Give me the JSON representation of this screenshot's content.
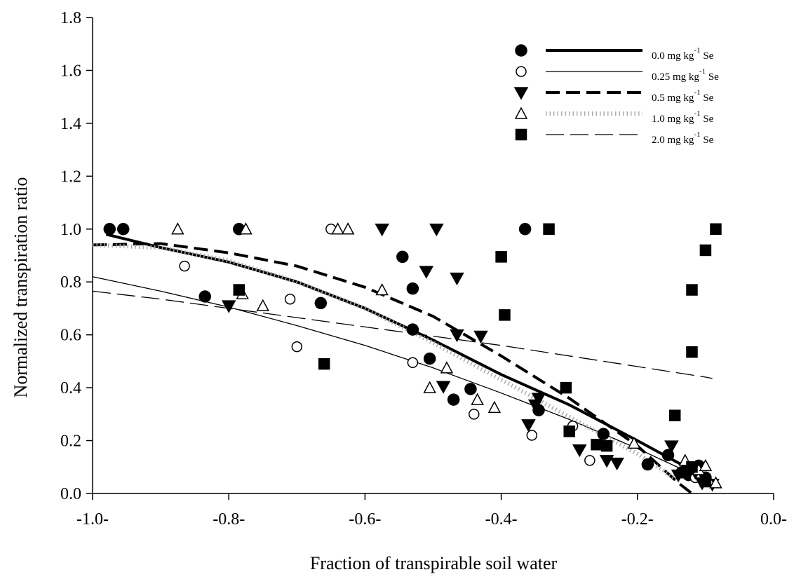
{
  "chart_data": {
    "type": "scatter",
    "title": "",
    "xlabel": "Fraction of transpirable soil water",
    "ylabel": "Normalized transpiration ratio",
    "xlim": [
      -1.0,
      0.0
    ],
    "ylim": [
      0.0,
      1.8
    ],
    "xticks": [
      -1.0,
      -0.8,
      -0.6,
      -0.4,
      -0.2,
      0.0
    ],
    "xtick_labels": [
      "-1.0-",
      "-0.8-",
      "-0.6-",
      "-0.4-",
      "-0.2-",
      "0.0-"
    ],
    "yticks": [
      0.0,
      0.2,
      0.4,
      0.6,
      0.8,
      1.0,
      1.2,
      1.4,
      1.6,
      1.8
    ],
    "ytick_labels": [
      "0.0",
      "0.2",
      "0.4",
      "0.6",
      "0.8",
      "1.0",
      "1.2",
      "1.4",
      "1.6",
      "1.8"
    ],
    "grid": false,
    "legend_position": "top-right",
    "series": [
      {
        "name": "0.0 mg kg-1 Se",
        "label_main": "0.0 mg kg",
        "label_sup": "-1",
        "label_tail": " Se",
        "marker": "filled-circle",
        "line_style": "thick-solid",
        "points": [
          [
            -0.975,
            1.0
          ],
          [
            -0.955,
            1.0
          ],
          [
            -0.785,
            1.0
          ],
          [
            -0.365,
            1.0
          ],
          [
            -0.835,
            0.745
          ],
          [
            -0.665,
            0.72
          ],
          [
            -0.545,
            0.895
          ],
          [
            -0.53,
            0.775
          ],
          [
            -0.53,
            0.62
          ],
          [
            -0.505,
            0.51
          ],
          [
            -0.445,
            0.395
          ],
          [
            -0.47,
            0.355
          ],
          [
            -0.345,
            0.315
          ],
          [
            -0.25,
            0.225
          ],
          [
            -0.185,
            0.11
          ],
          [
            -0.155,
            0.145
          ],
          [
            -0.135,
            0.08
          ],
          [
            -0.125,
            0.07
          ],
          [
            -0.11,
            0.105
          ],
          [
            -0.1,
            0.06
          ]
        ],
        "fit": [
          [
            -0.98,
            0.98
          ],
          [
            -0.9,
            0.93
          ],
          [
            -0.8,
            0.875
          ],
          [
            -0.7,
            0.8
          ],
          [
            -0.6,
            0.7
          ],
          [
            -0.5,
            0.58
          ],
          [
            -0.4,
            0.45
          ],
          [
            -0.3,
            0.335
          ],
          [
            -0.2,
            0.2
          ],
          [
            -0.1,
            0.06
          ],
          [
            -0.09,
            0.05
          ]
        ]
      },
      {
        "name": "0.25 mg kg-1 Se",
        "label_main": "0.25 mg kg",
        "label_sup": "-1",
        "label_tail": " Se",
        "marker": "open-circle",
        "line_style": "thin-solid",
        "points": [
          [
            -0.65,
            1.0
          ],
          [
            -0.865,
            0.86
          ],
          [
            -0.71,
            0.735
          ],
          [
            -0.7,
            0.555
          ],
          [
            -0.53,
            0.495
          ],
          [
            -0.44,
            0.3
          ],
          [
            -0.355,
            0.22
          ],
          [
            -0.295,
            0.255
          ],
          [
            -0.3,
            0.235
          ],
          [
            -0.27,
            0.125
          ],
          [
            -0.115,
            0.06
          ],
          [
            -0.1,
            0.05
          ]
        ],
        "fit": [
          [
            -1.0,
            0.82
          ],
          [
            -0.9,
            0.765
          ],
          [
            -0.8,
            0.705
          ],
          [
            -0.7,
            0.635
          ],
          [
            -0.6,
            0.56
          ],
          [
            -0.5,
            0.475
          ],
          [
            -0.4,
            0.38
          ],
          [
            -0.3,
            0.28
          ],
          [
            -0.2,
            0.17
          ],
          [
            -0.1,
            0.05
          ],
          [
            -0.09,
            0.04
          ]
        ]
      },
      {
        "name": "0.5 mg kg-1 Se",
        "label_main": "0.5 mg kg",
        "label_sup": "-1",
        "label_tail": " Se",
        "marker": "filled-triangle-down",
        "line_style": "thick-dashed",
        "points": [
          [
            -0.575,
            1.0
          ],
          [
            -0.495,
            1.0
          ],
          [
            -0.51,
            0.84
          ],
          [
            -0.465,
            0.815
          ],
          [
            -0.8,
            0.71
          ],
          [
            -0.465,
            0.6
          ],
          [
            -0.43,
            0.595
          ],
          [
            -0.485,
            0.405
          ],
          [
            -0.345,
            0.36
          ],
          [
            -0.35,
            0.335
          ],
          [
            -0.36,
            0.26
          ],
          [
            -0.285,
            0.165
          ],
          [
            -0.245,
            0.125
          ],
          [
            -0.23,
            0.115
          ],
          [
            -0.15,
            0.18
          ],
          [
            -0.14,
            0.07
          ],
          [
            -0.125,
            0.075
          ],
          [
            -0.115,
            0.08
          ],
          [
            -0.105,
            0.04
          ],
          [
            -0.09,
            0.035
          ]
        ],
        "fit": [
          [
            -1.0,
            0.94
          ],
          [
            -0.9,
            0.945
          ],
          [
            -0.8,
            0.91
          ],
          [
            -0.7,
            0.86
          ],
          [
            -0.6,
            0.78
          ],
          [
            -0.5,
            0.67
          ],
          [
            -0.4,
            0.52
          ],
          [
            -0.3,
            0.36
          ],
          [
            -0.2,
            0.18
          ],
          [
            -0.14,
            0.04
          ],
          [
            -0.12,
            0.0
          ]
        ]
      },
      {
        "name": "1.0 mg kg-1 Se",
        "label_main": "1.0 mg kg",
        "label_sup": "-1",
        "label_tail": " Se",
        "marker": "open-triangle-up",
        "line_style": "dotted",
        "points": [
          [
            -0.875,
            1.0
          ],
          [
            -0.775,
            1.0
          ],
          [
            -0.64,
            1.0
          ],
          [
            -0.625,
            1.0
          ],
          [
            -0.575,
            0.77
          ],
          [
            -0.78,
            0.755
          ],
          [
            -0.75,
            0.71
          ],
          [
            -0.48,
            0.475
          ],
          [
            -0.505,
            0.4
          ],
          [
            -0.435,
            0.355
          ],
          [
            -0.41,
            0.325
          ],
          [
            -0.205,
            0.19
          ],
          [
            -0.13,
            0.125
          ],
          [
            -0.11,
            0.09
          ],
          [
            -0.1,
            0.105
          ],
          [
            -0.095,
            0.05
          ],
          [
            -0.085,
            0.04
          ]
        ],
        "fit": [
          [
            -1.0,
            0.94
          ],
          [
            -0.9,
            0.93
          ],
          [
            -0.8,
            0.88
          ],
          [
            -0.7,
            0.8
          ],
          [
            -0.6,
            0.7
          ],
          [
            -0.5,
            0.57
          ],
          [
            -0.4,
            0.43
          ],
          [
            -0.3,
            0.29
          ],
          [
            -0.2,
            0.15
          ],
          [
            -0.14,
            0.05
          ]
        ]
      },
      {
        "name": "2.0 mg kg-1 Se",
        "label_main": "2.0 mg kg",
        "label_sup": "-1",
        "label_tail": " Se",
        "marker": "filled-square",
        "line_style": "long-dash",
        "points": [
          [
            -0.33,
            1.0
          ],
          [
            -0.085,
            1.0
          ],
          [
            -0.1,
            0.92
          ],
          [
            -0.4,
            0.895
          ],
          [
            -0.785,
            0.77
          ],
          [
            -0.12,
            0.77
          ],
          [
            -0.395,
            0.675
          ],
          [
            -0.12,
            0.535
          ],
          [
            -0.66,
            0.49
          ],
          [
            -0.305,
            0.4
          ],
          [
            -0.3,
            0.235
          ],
          [
            -0.145,
            0.295
          ],
          [
            -0.26,
            0.185
          ],
          [
            -0.245,
            0.18
          ],
          [
            -0.12,
            0.1
          ],
          [
            -0.1,
            0.045
          ]
        ],
        "fit": [
          [
            -1.0,
            0.765
          ],
          [
            -0.9,
            0.735
          ],
          [
            -0.8,
            0.7
          ],
          [
            -0.7,
            0.665
          ],
          [
            -0.6,
            0.63
          ],
          [
            -0.5,
            0.595
          ],
          [
            -0.4,
            0.56
          ],
          [
            -0.3,
            0.52
          ],
          [
            -0.2,
            0.48
          ],
          [
            -0.1,
            0.44
          ],
          [
            -0.09,
            0.435
          ]
        ]
      }
    ]
  }
}
